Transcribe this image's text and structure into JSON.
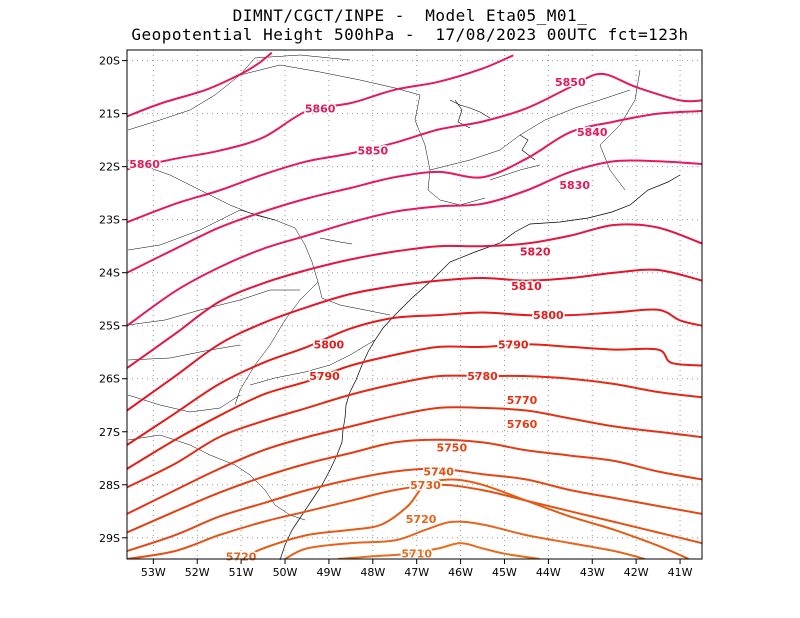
{
  "chart_data": {
    "type": "contour",
    "title_line1": "DIMNT/CGCT/INPE -  Model Eta05_M01_",
    "title_line2": "Geopotential Height 500hPa -  17/08/2023 00UTC fct=123h",
    "x_ticks": [
      "53W",
      "52W",
      "51W",
      "50W",
      "49W",
      "48W",
      "47W",
      "46W",
      "45W",
      "44W",
      "43W",
      "42W",
      "41W"
    ],
    "y_ticks": [
      "20S",
      "21S",
      "22S",
      "23S",
      "24S",
      "25S",
      "26S",
      "27S",
      "28S",
      "29S"
    ],
    "xlim_lon": [
      -53.6,
      -40.5
    ],
    "ylim_lat": [
      -29.4,
      -19.8
    ],
    "grid": "dotted",
    "contours": [
      {
        "level": 5860,
        "color": "#e6195a",
        "points": [
          [
            -53.6,
            -21.05
          ],
          [
            -52.8,
            -20.8
          ],
          [
            -51.8,
            -20.55
          ],
          [
            -51.0,
            -20.25
          ],
          [
            -50.6,
            -20.05
          ],
          [
            -50.3,
            -19.85
          ]
        ],
        "labels": [
          {
            "text": "5860",
            "lon": -49.2,
            "lat": -20.9
          },
          {
            "text": "5860",
            "lon": -53.2,
            "lat": -21.95
          }
        ]
      },
      {
        "level": 5860,
        "color": "#e6195a",
        "points": [
          [
            -53.6,
            -22.05
          ],
          [
            -52.5,
            -21.85
          ],
          [
            -51.5,
            -21.7
          ],
          [
            -50.5,
            -21.45
          ],
          [
            -49.5,
            -20.95
          ],
          [
            -48.5,
            -20.8
          ],
          [
            -47.5,
            -20.55
          ],
          [
            -46.5,
            -20.4
          ],
          [
            -45.5,
            -20.15
          ],
          [
            -44.8,
            -19.9
          ]
        ]
      },
      {
        "level": 5850,
        "color": "#e6195a",
        "points": [
          [
            -53.6,
            -23.05
          ],
          [
            -52.5,
            -22.7
          ],
          [
            -51.5,
            -22.45
          ],
          [
            -50.5,
            -22.15
          ],
          [
            -49.5,
            -21.9
          ],
          [
            -48.5,
            -21.75
          ],
          [
            -47.5,
            -21.55
          ],
          [
            -46.5,
            -21.3
          ],
          [
            -45.5,
            -21.15
          ],
          [
            -44.5,
            -20.9
          ],
          [
            -43.5,
            -20.5
          ],
          [
            -42.8,
            -20.25
          ],
          [
            -42.0,
            -20.5
          ],
          [
            -41.0,
            -20.75
          ],
          [
            -40.5,
            -20.75
          ]
        ],
        "labels": [
          {
            "text": "5850",
            "lon": -48.0,
            "lat": -21.7
          },
          {
            "text": "5850",
            "lon": -43.5,
            "lat": -20.4
          }
        ]
      },
      {
        "level": 5840,
        "color": "#e6195a",
        "points": [
          [
            -53.6,
            -24.0
          ],
          [
            -52.5,
            -23.55
          ],
          [
            -51.5,
            -23.15
          ],
          [
            -50.5,
            -22.85
          ],
          [
            -49.5,
            -22.6
          ],
          [
            -48.5,
            -22.4
          ],
          [
            -47.5,
            -22.2
          ],
          [
            -46.5,
            -22.1
          ],
          [
            -45.5,
            -22.2
          ],
          [
            -44.5,
            -21.85
          ],
          [
            -43.5,
            -21.35
          ],
          [
            -42.5,
            -21.15
          ],
          [
            -41.5,
            -21.0
          ],
          [
            -40.5,
            -20.95
          ]
        ],
        "labels": [
          {
            "text": "5840",
            "lon": -43.0,
            "lat": -21.35
          }
        ]
      },
      {
        "level": 5830,
        "color": "#e6195a",
        "points": [
          [
            -53.6,
            -25.0
          ],
          [
            -52.5,
            -24.35
          ],
          [
            -51.5,
            -23.9
          ],
          [
            -50.5,
            -23.55
          ],
          [
            -49.5,
            -23.3
          ],
          [
            -48.5,
            -23.05
          ],
          [
            -47.5,
            -22.85
          ],
          [
            -46.5,
            -22.75
          ],
          [
            -45.5,
            -22.7
          ],
          [
            -44.5,
            -22.45
          ],
          [
            -43.5,
            -22.1
          ],
          [
            -42.5,
            -21.9
          ],
          [
            -41.5,
            -21.9
          ],
          [
            -40.5,
            -21.95
          ]
        ],
        "labels": [
          {
            "text": "5830",
            "lon": -43.4,
            "lat": -22.35
          }
        ]
      },
      {
        "level": 5820,
        "color": "#e61440",
        "points": [
          [
            -53.6,
            -25.8
          ],
          [
            -52.5,
            -25.15
          ],
          [
            -51.5,
            -24.55
          ],
          [
            -50.5,
            -24.2
          ],
          [
            -49.5,
            -23.95
          ],
          [
            -48.5,
            -23.75
          ],
          [
            -47.5,
            -23.6
          ],
          [
            -46.5,
            -23.5
          ],
          [
            -45.5,
            -23.5
          ],
          [
            -44.5,
            -23.45
          ],
          [
            -43.5,
            -23.3
          ],
          [
            -42.5,
            -23.1
          ],
          [
            -41.5,
            -23.15
          ],
          [
            -40.5,
            -23.45
          ]
        ],
        "labels": [
          {
            "text": "5820",
            "lon": -44.3,
            "lat": -23.6
          }
        ]
      },
      {
        "level": 5810,
        "color": "#e61428",
        "points": [
          [
            -53.6,
            -26.6
          ],
          [
            -52.5,
            -25.95
          ],
          [
            -51.5,
            -25.35
          ],
          [
            -50.5,
            -24.95
          ],
          [
            -49.5,
            -24.65
          ],
          [
            -48.5,
            -24.4
          ],
          [
            -47.5,
            -24.25
          ],
          [
            -46.5,
            -24.15
          ],
          [
            -45.5,
            -24.1
          ],
          [
            -44.5,
            -24.15
          ],
          [
            -43.5,
            -24.1
          ],
          [
            -42.5,
            -24.0
          ],
          [
            -41.5,
            -23.95
          ],
          [
            -40.5,
            -24.15
          ]
        ],
        "labels": [
          {
            "text": "5810",
            "lon": -44.5,
            "lat": -24.25
          }
        ]
      },
      {
        "level": 5800,
        "color": "#e61a1a",
        "points": [
          [
            -53.6,
            -27.25
          ],
          [
            -52.5,
            -26.65
          ],
          [
            -51.5,
            -26.1
          ],
          [
            -50.5,
            -25.7
          ],
          [
            -49.5,
            -25.4
          ],
          [
            -48.5,
            -25.05
          ],
          [
            -47.5,
            -24.85
          ],
          [
            -46.5,
            -24.8
          ],
          [
            -45.5,
            -24.75
          ],
          [
            -44.5,
            -24.8
          ],
          [
            -43.5,
            -24.8
          ],
          [
            -42.5,
            -24.75
          ],
          [
            -41.5,
            -24.7
          ],
          [
            -41.0,
            -24.9
          ],
          [
            -40.5,
            -25.0
          ]
        ],
        "labels": [
          {
            "text": "5800",
            "lon": -49.0,
            "lat": -25.35
          },
          {
            "text": "5800",
            "lon": -44.0,
            "lat": -24.8
          }
        ]
      },
      {
        "level": 5790,
        "color": "#e61e14",
        "points": [
          [
            -53.6,
            -27.7
          ],
          [
            -52.5,
            -27.15
          ],
          [
            -51.5,
            -26.7
          ],
          [
            -50.5,
            -26.3
          ],
          [
            -49.5,
            -26.05
          ],
          [
            -48.5,
            -25.75
          ],
          [
            -47.5,
            -25.55
          ],
          [
            -46.5,
            -25.4
          ],
          [
            -45.5,
            -25.4
          ],
          [
            -44.5,
            -25.35
          ],
          [
            -43.5,
            -25.4
          ],
          [
            -42.5,
            -25.45
          ],
          [
            -41.5,
            -25.45
          ],
          [
            -41.2,
            -25.7
          ],
          [
            -40.5,
            -25.75
          ]
        ],
        "labels": [
          {
            "text": "5790",
            "lon": -49.1,
            "lat": -25.95
          },
          {
            "text": "5790",
            "lon": -44.8,
            "lat": -25.35
          }
        ]
      },
      {
        "level": 5780,
        "color": "#e62814",
        "points": [
          [
            -53.6,
            -28.05
          ],
          [
            -52.5,
            -27.6
          ],
          [
            -51.5,
            -27.1
          ],
          [
            -50.5,
            -26.8
          ],
          [
            -49.5,
            -26.55
          ],
          [
            -48.5,
            -26.3
          ],
          [
            -47.5,
            -26.1
          ],
          [
            -46.5,
            -25.95
          ],
          [
            -45.5,
            -25.95
          ],
          [
            -44.5,
            -25.95
          ],
          [
            -43.5,
            -26.0
          ],
          [
            -42.5,
            -26.1
          ],
          [
            -41.5,
            -26.25
          ],
          [
            -40.5,
            -26.35
          ]
        ],
        "labels": [
          {
            "text": "5780",
            "lon": -45.5,
            "lat": -25.95
          }
        ]
      },
      {
        "level": 5770,
        "color": "#e63214",
        "points": [
          [
            -53.6,
            -28.55
          ],
          [
            -52.5,
            -28.1
          ],
          [
            -51.5,
            -27.7
          ],
          [
            -50.5,
            -27.35
          ],
          [
            -49.5,
            -27.1
          ],
          [
            -48.5,
            -26.9
          ],
          [
            -47.5,
            -26.7
          ],
          [
            -46.5,
            -26.55
          ],
          [
            -45.5,
            -26.55
          ],
          [
            -44.5,
            -26.6
          ],
          [
            -43.5,
            -26.75
          ],
          [
            -42.5,
            -26.9
          ],
          [
            -41.5,
            -27.0
          ],
          [
            -40.5,
            -27.1
          ]
        ],
        "labels": [
          {
            "text": "5770",
            "lon": -44.6,
            "lat": -26.4
          }
        ]
      },
      {
        "level": 5760,
        "color": "#e63c14",
        "points": [
          [
            -53.6,
            -28.9
          ],
          [
            -52.5,
            -28.5
          ],
          [
            -51.5,
            -28.15
          ],
          [
            -50.5,
            -27.85
          ],
          [
            -49.5,
            -27.6
          ],
          [
            -48.5,
            -27.4
          ],
          [
            -47.5,
            -27.2
          ],
          [
            -46.5,
            -27.15
          ],
          [
            -45.5,
            -27.2
          ],
          [
            -44.5,
            -27.35
          ],
          [
            -43.5,
            -27.45
          ],
          [
            -42.5,
            -27.55
          ],
          [
            -41.5,
            -27.75
          ],
          [
            -40.5,
            -27.9
          ]
        ],
        "labels": [
          {
            "text": "5760",
            "lon": -44.6,
            "lat": -26.85
          }
        ]
      },
      {
        "level": 5750,
        "color": "#e64614",
        "points": [
          [
            -53.6,
            -29.25
          ],
          [
            -52.5,
            -28.95
          ],
          [
            -51.5,
            -28.6
          ],
          [
            -50.5,
            -28.35
          ],
          [
            -49.5,
            -28.1
          ],
          [
            -48.5,
            -27.9
          ],
          [
            -47.5,
            -27.75
          ],
          [
            -46.5,
            -27.7
          ],
          [
            -45.5,
            -27.8
          ],
          [
            -44.5,
            -27.9
          ],
          [
            -43.5,
            -28.1
          ],
          [
            -42.5,
            -28.25
          ],
          [
            -41.5,
            -28.4
          ],
          [
            -40.5,
            -28.55
          ]
        ],
        "labels": [
          {
            "text": "5750",
            "lon": -46.2,
            "lat": -27.3
          }
        ]
      },
      {
        "level": 5740,
        "color": "#e65014",
        "points": [
          [
            -53.6,
            -29.4
          ],
          [
            -52.5,
            -29.25
          ],
          [
            -51.5,
            -28.95
          ],
          [
            -50.5,
            -28.7
          ],
          [
            -49.5,
            -28.5
          ],
          [
            -48.5,
            -28.3
          ],
          [
            -47.5,
            -28.1
          ],
          [
            -46.5,
            -28.0
          ],
          [
            -45.5,
            -28.1
          ],
          [
            -44.5,
            -28.3
          ],
          [
            -43.5,
            -28.5
          ],
          [
            -42.5,
            -28.7
          ],
          [
            -41.5,
            -28.9
          ],
          [
            -40.5,
            -29.1
          ]
        ],
        "labels": [
          {
            "text": "5740",
            "lon": -46.5,
            "lat": -27.75
          }
        ]
      },
      {
        "level": 5730,
        "color": "#e65a14",
        "points": [
          [
            -51.0,
            -29.4
          ],
          [
            -50.5,
            -29.2
          ],
          [
            -49.5,
            -28.95
          ],
          [
            -48.5,
            -28.85
          ],
          [
            -47.8,
            -28.75
          ],
          [
            -47.2,
            -28.4
          ],
          [
            -46.8,
            -28.0
          ],
          [
            -46.2,
            -27.9
          ],
          [
            -45.5,
            -28.0
          ],
          [
            -44.5,
            -28.3
          ],
          [
            -43.5,
            -28.6
          ],
          [
            -42.5,
            -28.85
          ],
          [
            -41.5,
            -29.15
          ],
          [
            -40.8,
            -29.4
          ]
        ],
        "labels": [
          {
            "text": "5730",
            "lon": -46.8,
            "lat": -28.0
          }
        ]
      },
      {
        "level": 5720,
        "color": "#e6641e",
        "points": [
          [
            -50.0,
            -29.4
          ],
          [
            -49.5,
            -29.2
          ],
          [
            -48.5,
            -29.1
          ],
          [
            -47.5,
            -29.05
          ],
          [
            -46.8,
            -28.85
          ],
          [
            -46.2,
            -28.7
          ],
          [
            -45.5,
            -28.75
          ],
          [
            -44.5,
            -28.95
          ],
          [
            -43.5,
            -29.1
          ],
          [
            -42.5,
            -29.25
          ],
          [
            -41.8,
            -29.4
          ]
        ],
        "labels": [
          {
            "text": "5720",
            "lon": -46.9,
            "lat": -28.65
          },
          {
            "text": "5720",
            "lon": -51.0,
            "lat": -29.35
          }
        ]
      },
      {
        "level": 5710,
        "color": "#e66e1e",
        "points": [
          [
            -48.8,
            -29.4
          ],
          [
            -48.0,
            -29.35
          ],
          [
            -47.2,
            -29.3
          ],
          [
            -46.5,
            -29.2
          ],
          [
            -46.0,
            -29.1
          ],
          [
            -45.5,
            -29.2
          ],
          [
            -45.0,
            -29.3
          ],
          [
            -44.2,
            -29.4
          ]
        ],
        "labels": [
          {
            "text": "5710",
            "lon": -47.0,
            "lat": -29.3
          }
        ]
      }
    ]
  }
}
